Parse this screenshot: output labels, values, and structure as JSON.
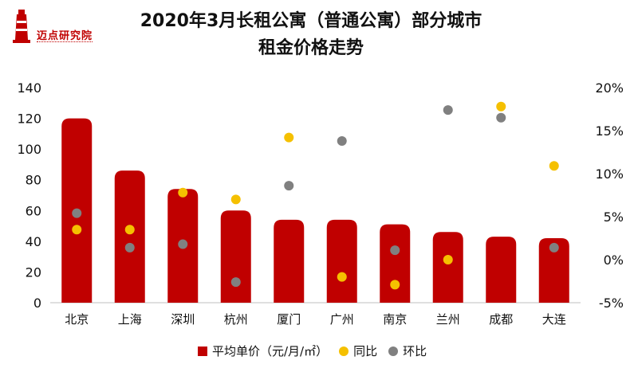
{
  "logo": {
    "text": "迈点研究院"
  },
  "chart_data": {
    "type": "bar",
    "title_line1": "2020年3月长租公寓（普通公寓）部分城市",
    "title_line2": "租金价格走势",
    "categories": [
      "北京",
      "上海",
      "深圳",
      "杭州",
      "厦门",
      "广州",
      "南京",
      "兰州",
      "成都",
      "大连"
    ],
    "left_axis": {
      "ylim": [
        0,
        140
      ],
      "ticks": [
        "0",
        "20",
        "40",
        "60",
        "80",
        "100",
        "120",
        "140"
      ]
    },
    "right_axis": {
      "ylim": [
        -5,
        20
      ],
      "ticks": [
        "-5%",
        "0%",
        "5%",
        "10%",
        "15%",
        "20%"
      ]
    },
    "series": [
      {
        "name": "平均单价（元/月/㎡）",
        "kind": "bar",
        "axis": "left",
        "color": "#c00000",
        "values": [
          120,
          86,
          74,
          60,
          54,
          54,
          51,
          46,
          43,
          42
        ]
      },
      {
        "name": "同比",
        "kind": "scatter",
        "axis": "right",
        "color": "#f5c000",
        "values": [
          3.5,
          3.5,
          7.8,
          7.0,
          14.2,
          -2.0,
          -2.9,
          0.0,
          17.8,
          10.9
        ]
      },
      {
        "name": "环比",
        "kind": "scatter",
        "axis": "right",
        "color": "#808080",
        "values": [
          5.4,
          1.4,
          1.8,
          -2.6,
          8.6,
          13.8,
          1.1,
          17.4,
          16.5,
          1.4
        ]
      }
    ],
    "legend": {
      "position": "bottom"
    },
    "grid": false
  }
}
